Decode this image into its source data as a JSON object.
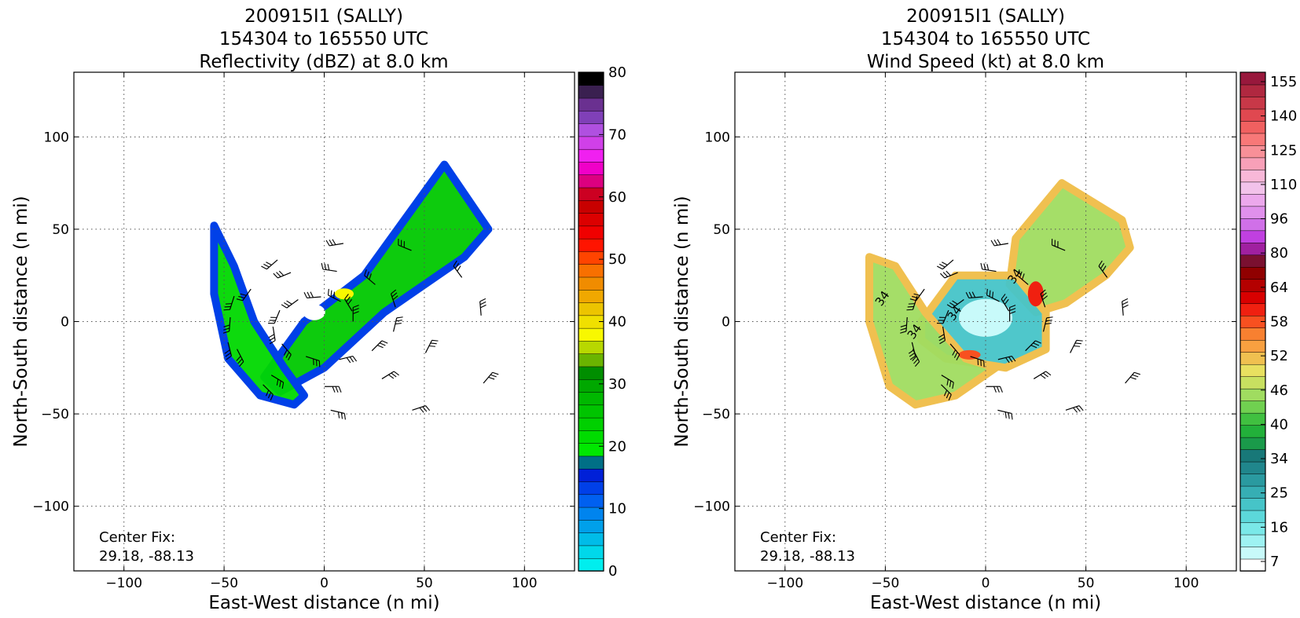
{
  "chart_data": [
    {
      "type": "heatmap",
      "title": [
        "200915I1 (SALLY)",
        "154304 to 165550 UTC",
        "Reflectivity (dBZ) at 8.0 km"
      ],
      "xlabel": "East-West distance (n mi)",
      "ylabel": "North-South distance (n mi)",
      "xlim": [
        -125,
        125
      ],
      "ylim": [
        -135,
        135
      ],
      "xticks": [
        -100,
        -50,
        0,
        50,
        100
      ],
      "yticks": [
        -100,
        -50,
        0,
        50,
        100
      ],
      "xtick_labels": [
        "−100",
        "−50",
        "0",
        "50",
        "100"
      ],
      "ytick_labels": [
        "−100",
        "−50",
        "0",
        "50",
        "100"
      ],
      "grid": true,
      "annotation": [
        "Center Fix:",
        "29.18, -88.13"
      ],
      "colorbar": {
        "min": 0,
        "max": 80,
        "tick_values": [
          0,
          10,
          20,
          30,
          40,
          50,
          60,
          70,
          80
        ],
        "tick_labels": [
          "0",
          "10",
          "20",
          "30",
          "40",
          "50",
          "60",
          "70",
          "80"
        ],
        "colors": [
          "#00eeee",
          "#00d8ea",
          "#00bce8",
          "#00a0ea",
          "#0084ee",
          "#0060f0",
          "#0040e8",
          "#0020d8",
          "#006f86",
          "#00e800",
          "#00dc00",
          "#00d000",
          "#00c400",
          "#00b800",
          "#00a800",
          "#008e00",
          "#6ab400",
          "#b8d800",
          "#f8f800",
          "#f0e000",
          "#ecc400",
          "#f0a800",
          "#f08c00",
          "#f87000",
          "#ff4400",
          "#ff1400",
          "#f00000",
          "#dc0000",
          "#c80000",
          "#cc0022",
          "#dc0080",
          "#f000c8",
          "#f020f0",
          "#d040e8",
          "#b050e0",
          "#8040b8",
          "#6a3090",
          "#3a2050",
          "#000000"
        ]
      },
      "field_regions": [
        {
          "name": "main-band",
          "x": [
            -30,
            -10,
            20,
            60,
            82,
            70,
            30,
            0,
            -22
          ],
          "y": [
            -30,
            0,
            25,
            85,
            50,
            35,
            5,
            -25,
            -38
          ]
        },
        {
          "name": "spiral-arm",
          "x": [
            -55,
            -45,
            -35,
            -20,
            -10,
            -15,
            -32,
            -48,
            -55
          ],
          "y": [
            52,
            30,
            0,
            -25,
            -40,
            -45,
            -40,
            -20,
            15
          ]
        }
      ],
      "wind_barbs": true
    },
    {
      "type": "heatmap",
      "title": [
        "200915I1 (SALLY)",
        "154304 to 165550 UTC",
        "Wind Speed (kt) at 8.0 km"
      ],
      "xlabel": "East-West distance (n mi)",
      "ylabel": "North-South distance (n mi)",
      "xlim": [
        -125,
        125
      ],
      "ylim": [
        -135,
        135
      ],
      "xticks": [
        -100,
        -50,
        0,
        50,
        100
      ],
      "yticks": [
        -100,
        -50,
        0,
        50,
        100
      ],
      "xtick_labels": [
        "−100",
        "−50",
        "0",
        "50",
        "100"
      ],
      "ytick_labels": [
        "−100",
        "−50",
        "0",
        "50",
        "100"
      ],
      "grid": true,
      "annotation": [
        "Center Fix:",
        "29.18, -88.13"
      ],
      "contour_labels": [
        "34",
        "34",
        "34",
        "34"
      ],
      "colorbar": {
        "min": 7,
        "max": 160,
        "tick_labels": [
          "7",
          "16",
          "25",
          "34",
          "40",
          "46",
          "52",
          "58",
          "64",
          "80",
          "96",
          "110",
          "125",
          "140",
          "155"
        ],
        "colors": [
          "#ffffff",
          "#c8fafa",
          "#9ef2f2",
          "#7ae8e8",
          "#5cd8da",
          "#46c4c8",
          "#36aeb4",
          "#2a9aa0",
          "#20868c",
          "#187878",
          "#1a9a4a",
          "#22b03a",
          "#40c040",
          "#70d050",
          "#a0dc60",
          "#c8e060",
          "#e8e060",
          "#f0c050",
          "#f8a040",
          "#f88030",
          "#f85020",
          "#f02010",
          "#d80000",
          "#b40000",
          "#900000",
          "#7a1030",
          "#a020a0",
          "#c040e0",
          "#d070e8",
          "#e090ec",
          "#eca8ec",
          "#f2c2ea",
          "#f8b8d8",
          "#f8a0b8",
          "#f89098",
          "#f87878",
          "#f06060",
          "#e04850",
          "#c83848",
          "#b02840",
          "#98183c"
        ]
      },
      "field_regions": [
        {
          "name": "ne-band",
          "x": [
            15,
            38,
            68,
            72,
            60,
            40,
            25,
            12
          ],
          "y": [
            45,
            75,
            55,
            40,
            25,
            10,
            5,
            20
          ]
        },
        {
          "name": "core",
          "x": [
            -32,
            -15,
            15,
            30,
            30,
            10,
            -20,
            -32
          ],
          "y": [
            0,
            25,
            25,
            5,
            -15,
            -25,
            -20,
            -10
          ]
        },
        {
          "name": "sw-arm",
          "x": [
            -58,
            -45,
            -30,
            -10,
            5,
            -15,
            -35,
            -48,
            -58
          ],
          "y": [
            35,
            30,
            5,
            -20,
            -25,
            -40,
            -45,
            -35,
            0
          ]
        }
      ],
      "wind_barbs": true
    }
  ]
}
